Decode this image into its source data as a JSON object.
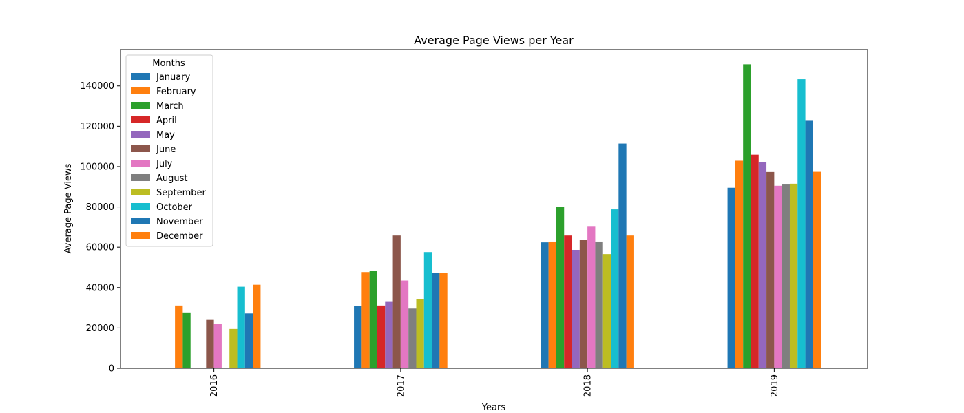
{
  "chart_data": {
    "type": "bar",
    "title": "Average Page Views per Year",
    "xlabel": "Years",
    "ylabel": "Average Page Views",
    "categories": [
      "2016",
      "2017",
      "2018",
      "2019"
    ],
    "ylim": [
      0,
      158000
    ],
    "yticks": [
      0,
      20000,
      40000,
      60000,
      80000,
      100000,
      120000,
      140000
    ],
    "grid": false,
    "legend": {
      "title": "Months",
      "position": "top-left"
    },
    "series": [
      {
        "name": "January",
        "color": "#1f77b4",
        "values": [
          null,
          30800,
          62400,
          89500
        ]
      },
      {
        "name": "February",
        "color": "#ff7f0e",
        "values": [
          31100,
          47700,
          62800,
          102900
        ]
      },
      {
        "name": "March",
        "color": "#2ca02c",
        "values": [
          27700,
          48300,
          80100,
          150700
        ]
      },
      {
        "name": "April",
        "color": "#d62728",
        "values": [
          null,
          31100,
          65800,
          105900
        ]
      },
      {
        "name": "May",
        "color": "#9467bd",
        "values": [
          null,
          32900,
          58700,
          102200
        ]
      },
      {
        "name": "June",
        "color": "#8c564b",
        "values": [
          24000,
          65800,
          63700,
          97300
        ]
      },
      {
        "name": "July",
        "color": "#e377c2",
        "values": [
          21900,
          43500,
          70200,
          90500
        ]
      },
      {
        "name": "August",
        "color": "#7f7f7f",
        "values": [
          null,
          29600,
          62800,
          91100
        ]
      },
      {
        "name": "September",
        "color": "#bcbd22",
        "values": [
          19500,
          34300,
          56600,
          91500
        ]
      },
      {
        "name": "October",
        "color": "#17becf",
        "values": [
          40400,
          57600,
          78800,
          143300
        ]
      },
      {
        "name": "November",
        "color": "#1f77b4",
        "values": [
          27200,
          47300,
          111400,
          122700
        ]
      },
      {
        "name": "December",
        "color": "#ff7f0e",
        "values": [
          41400,
          47300,
          65800,
          97400
        ]
      }
    ]
  }
}
